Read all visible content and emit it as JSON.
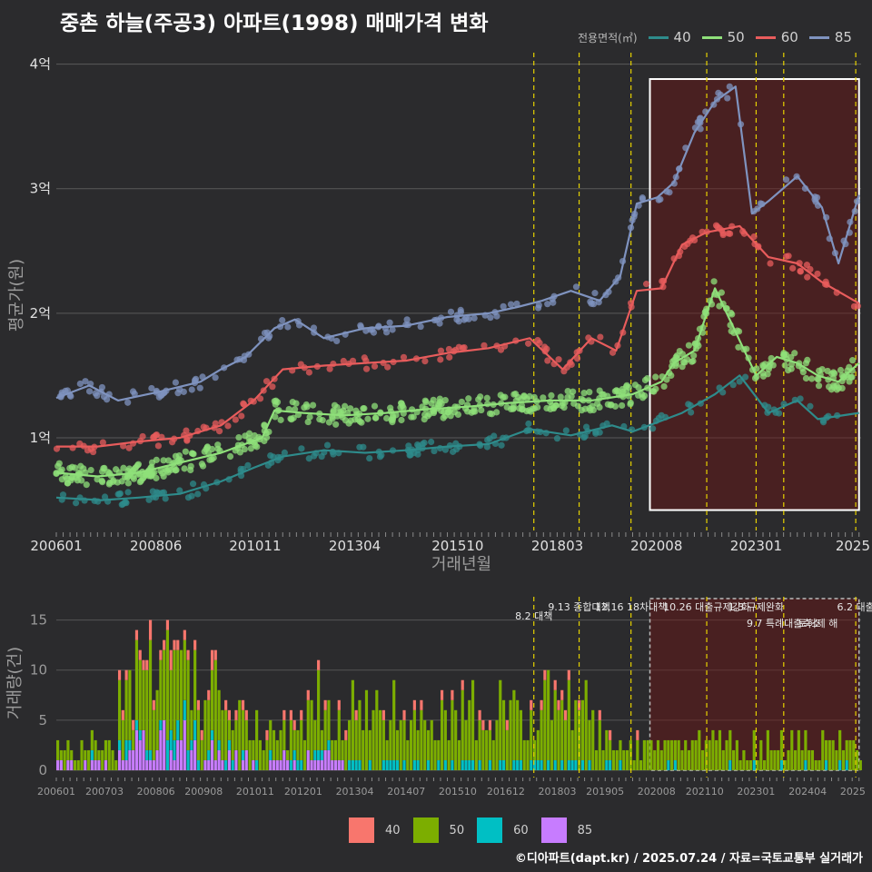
{
  "title": "중촌 하늘(주공3) 아파트(1998) 매매가격 변화",
  "footer": "©디아파트(dapt.kr) / 2025.07.24 / 자료=국토교통부 실거래가",
  "colors": {
    "40_line": "#2e8b8b",
    "50_line": "#8fe07a",
    "60_line": "#e85c5c",
    "85_line": "#7f93bf",
    "40_bar": "#f8766d",
    "50_bar": "#7cae00",
    "60_bar": "#00bfc4",
    "85_bar": "#c77cff",
    "policy": "#e6d200",
    "highlight": "#ffffff"
  },
  "chart_data": [
    {
      "type": "line",
      "xlabel": "거래년월",
      "ylabel": "평균가(원)",
      "legend_title": "전용면적(㎡)",
      "legend_position": "top-right",
      "grid": true,
      "x_tick_labels": [
        "200601",
        "200806",
        "201011",
        "201304",
        "201510",
        "201803",
        "202008",
        "202301",
        "2025"
      ],
      "y_tick_labels": [
        "1억",
        "2억",
        "3억",
        "4억"
      ],
      "y_ticks": [
        1,
        2,
        3,
        4
      ],
      "ylim": [
        0.3,
        4.15
      ],
      "xlim": [
        2006.0,
        2025.55
      ],
      "policy_dates": [
        2017.6,
        2018.7,
        2019.96,
        2021.8,
        2023.0,
        2023.67,
        2025.42
      ],
      "highlight_range": [
        2020.42,
        2025.5
      ],
      "series": [
        {
          "name": "40",
          "points": [
            [
              2006.0,
              0.52
            ],
            [
              2007.1,
              0.5
            ],
            [
              2008.0,
              0.52
            ],
            [
              2009.0,
              0.55
            ],
            [
              2010.0,
              0.65
            ],
            [
              2010.8,
              0.76
            ],
            [
              2011.5,
              0.85
            ],
            [
              2012.5,
              0.9
            ],
            [
              2013.5,
              0.88
            ],
            [
              2014.5,
              0.9
            ],
            [
              2015.5,
              0.93
            ],
            [
              2016.5,
              0.95
            ],
            [
              2017.5,
              1.07
            ],
            [
              2018.5,
              1.02
            ],
            [
              2019.5,
              1.1
            ],
            [
              2020.0,
              1.05
            ],
            [
              2020.4,
              1.1
            ],
            [
              2021.2,
              1.2
            ],
            [
              2022.0,
              1.35
            ],
            [
              2022.6,
              1.5
            ],
            [
              2023.3,
              1.2
            ],
            [
              2024.0,
              1.3
            ],
            [
              2024.5,
              1.15
            ],
            [
              2025.5,
              1.2
            ]
          ]
        },
        {
          "name": "50",
          "points": [
            [
              2006.0,
              0.72
            ],
            [
              2007.0,
              0.69
            ],
            [
              2008.0,
              0.72
            ],
            [
              2009.0,
              0.8
            ],
            [
              2010.0,
              0.88
            ],
            [
              2011.0,
              1.0
            ],
            [
              2011.3,
              1.22
            ],
            [
              2012.0,
              1.2
            ],
            [
              2013.0,
              1.18
            ],
            [
              2014.0,
              1.2
            ],
            [
              2015.0,
              1.23
            ],
            [
              2016.0,
              1.25
            ],
            [
              2017.0,
              1.28
            ],
            [
              2018.0,
              1.3
            ],
            [
              2019.0,
              1.3
            ],
            [
              2020.0,
              1.35
            ],
            [
              2020.7,
              1.45
            ],
            [
              2021.0,
              1.6
            ],
            [
              2021.5,
              1.7
            ],
            [
              2022.0,
              2.2
            ],
            [
              2022.5,
              1.85
            ],
            [
              2023.0,
              1.5
            ],
            [
              2023.5,
              1.65
            ],
            [
              2024.0,
              1.6
            ],
            [
              2024.5,
              1.5
            ],
            [
              2025.0,
              1.45
            ],
            [
              2025.5,
              1.6
            ]
          ]
        },
        {
          "name": "60",
          "points": [
            [
              2006.0,
              0.93
            ],
            [
              2007.0,
              0.93
            ],
            [
              2008.0,
              0.97
            ],
            [
              2009.0,
              1.0
            ],
            [
              2010.0,
              1.1
            ],
            [
              2010.8,
              1.3
            ],
            [
              2011.5,
              1.55
            ],
            [
              2012.5,
              1.58
            ],
            [
              2013.5,
              1.6
            ],
            [
              2014.5,
              1.62
            ],
            [
              2015.5,
              1.68
            ],
            [
              2016.5,
              1.72
            ],
            [
              2017.5,
              1.8
            ],
            [
              2018.3,
              1.55
            ],
            [
              2019.0,
              1.8
            ],
            [
              2019.6,
              1.7
            ],
            [
              2020.1,
              2.18
            ],
            [
              2020.7,
              2.2
            ],
            [
              2021.2,
              2.55
            ],
            [
              2021.8,
              2.65
            ],
            [
              2022.6,
              2.7
            ],
            [
              2023.3,
              2.45
            ],
            [
              2024.0,
              2.4
            ],
            [
              2024.6,
              2.25
            ],
            [
              2025.5,
              2.08
            ]
          ]
        },
        {
          "name": "85",
          "points": [
            [
              2006.0,
              1.32
            ],
            [
              2006.8,
              1.42
            ],
            [
              2007.5,
              1.3
            ],
            [
              2008.5,
              1.37
            ],
            [
              2009.5,
              1.45
            ],
            [
              2010.0,
              1.55
            ],
            [
              2010.6,
              1.65
            ],
            [
              2011.3,
              1.88
            ],
            [
              2011.8,
              1.95
            ],
            [
              2012.5,
              1.8
            ],
            [
              2013.5,
              1.88
            ],
            [
              2014.5,
              1.9
            ],
            [
              2015.5,
              1.97
            ],
            [
              2016.5,
              2.0
            ],
            [
              2017.2,
              2.05
            ],
            [
              2017.8,
              2.1
            ],
            [
              2018.5,
              2.18
            ],
            [
              2019.2,
              2.1
            ],
            [
              2019.7,
              2.3
            ],
            [
              2020.1,
              2.88
            ],
            [
              2020.6,
              2.93
            ],
            [
              2021.0,
              3.05
            ],
            [
              2021.5,
              3.45
            ],
            [
              2022.0,
              3.7
            ],
            [
              2022.5,
              3.82
            ],
            [
              2022.9,
              2.8
            ],
            [
              2023.3,
              2.9
            ],
            [
              2024.0,
              3.1
            ],
            [
              2024.6,
              2.85
            ],
            [
              2025.0,
              2.4
            ],
            [
              2025.5,
              2.95
            ]
          ]
        }
      ]
    },
    {
      "type": "bar",
      "stacked": true,
      "ylabel": "거래량(건)",
      "xlabel": "",
      "y_tick_labels": [
        "0",
        "5",
        "10",
        "15"
      ],
      "y_ticks": [
        0,
        5,
        10,
        15
      ],
      "ylim": [
        0,
        17.5
      ],
      "x_tick_labels": [
        "200601",
        "200703",
        "200806",
        "200908",
        "201011",
        "201201",
        "201304",
        "201407",
        "201510",
        "201612",
        "201803",
        "201905",
        "202008",
        "202110",
        "202301",
        "202404",
        "2025"
      ],
      "categories_note": "monthly, 2006-01 to 2025-07",
      "legend_position": "bottom",
      "series_names": [
        "40",
        "50",
        "60",
        "85"
      ],
      "policy_annotations": [
        {
          "x": 2017.6,
          "date": "8.2",
          "label": "대책"
        },
        {
          "x": 2018.7,
          "date": "9.13",
          "label": "종합대책"
        },
        {
          "x": 2019.96,
          "date": "12.16",
          "label": "18차대책"
        },
        {
          "x": 2021.8,
          "date": "10.26",
          "label": "대출규제강화"
        },
        {
          "x": 2023.0,
          "date": "1.3",
          "label": "규제완화"
        },
        {
          "x": 2023.67,
          "date": "9.7",
          "label": "특례대출축소"
        },
        {
          "x": 2024.5,
          "date": "",
          "label": "토허제 해"
        },
        {
          "x": 2025.42,
          "date": "6.2",
          "label": "대출"
        }
      ],
      "highlight_range": [
        2020.42,
        2025.5
      ]
    }
  ]
}
